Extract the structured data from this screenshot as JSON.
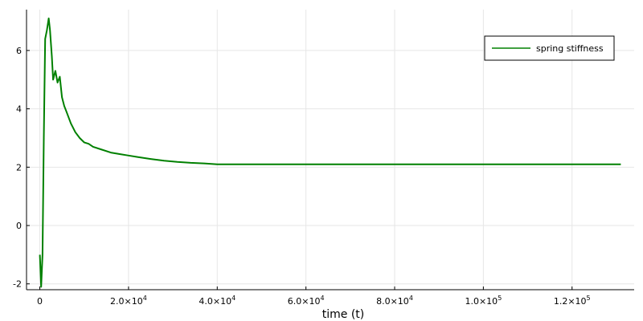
{
  "chart_data": {
    "type": "line",
    "title": "",
    "xlabel": "time (t)",
    "ylabel": "",
    "xlim": [
      -3000,
      134000
    ],
    "ylim": [
      -2.2,
      7.4
    ],
    "x_ticks": [
      {
        "value": 0,
        "mantissa": "0",
        "exp": ""
      },
      {
        "value": 20000,
        "mantissa": "2.0×10",
        "exp": "4"
      },
      {
        "value": 40000,
        "mantissa": "4.0×10",
        "exp": "4"
      },
      {
        "value": 60000,
        "mantissa": "6.0×10",
        "exp": "4"
      },
      {
        "value": 80000,
        "mantissa": "8.0×10",
        "exp": "4"
      },
      {
        "value": 100000,
        "mantissa": "1.0×10",
        "exp": "5"
      },
      {
        "value": 120000,
        "mantissa": "1.2×10",
        "exp": "5"
      }
    ],
    "y_ticks": [
      {
        "value": -2,
        "label": "-2"
      },
      {
        "value": 0,
        "label": "0"
      },
      {
        "value": 2,
        "label": "2"
      },
      {
        "value": 4,
        "label": "4"
      },
      {
        "value": 6,
        "label": "6"
      }
    ],
    "grid": true,
    "legend_position": "top-right",
    "series": [
      {
        "name": "spring stiffness",
        "color": "#008000",
        "x": [
          0,
          300,
          600,
          900,
          1200,
          1600,
          2000,
          2300,
          2700,
          3000,
          3500,
          4000,
          4500,
          5000,
          5500,
          6000,
          7000,
          8000,
          9000,
          10000,
          11000,
          12000,
          14000,
          16000,
          18000,
          20000,
          22000,
          25000,
          28000,
          31000,
          34000,
          37000,
          40000,
          45000,
          50000,
          60000,
          70000,
          80000,
          90000,
          100000,
          110000,
          120000,
          131000
        ],
        "y": [
          -1.0,
          -2.1,
          -1.0,
          3.0,
          6.4,
          6.7,
          7.1,
          6.7,
          5.8,
          5.0,
          5.3,
          4.9,
          5.1,
          4.4,
          4.1,
          3.9,
          3.5,
          3.2,
          3.0,
          2.85,
          2.8,
          2.7,
          2.6,
          2.5,
          2.45,
          2.4,
          2.35,
          2.28,
          2.22,
          2.18,
          2.15,
          2.13,
          2.1,
          2.1,
          2.1,
          2.1,
          2.1,
          2.1,
          2.1,
          2.1,
          2.1,
          2.1,
          2.1
        ]
      }
    ]
  }
}
